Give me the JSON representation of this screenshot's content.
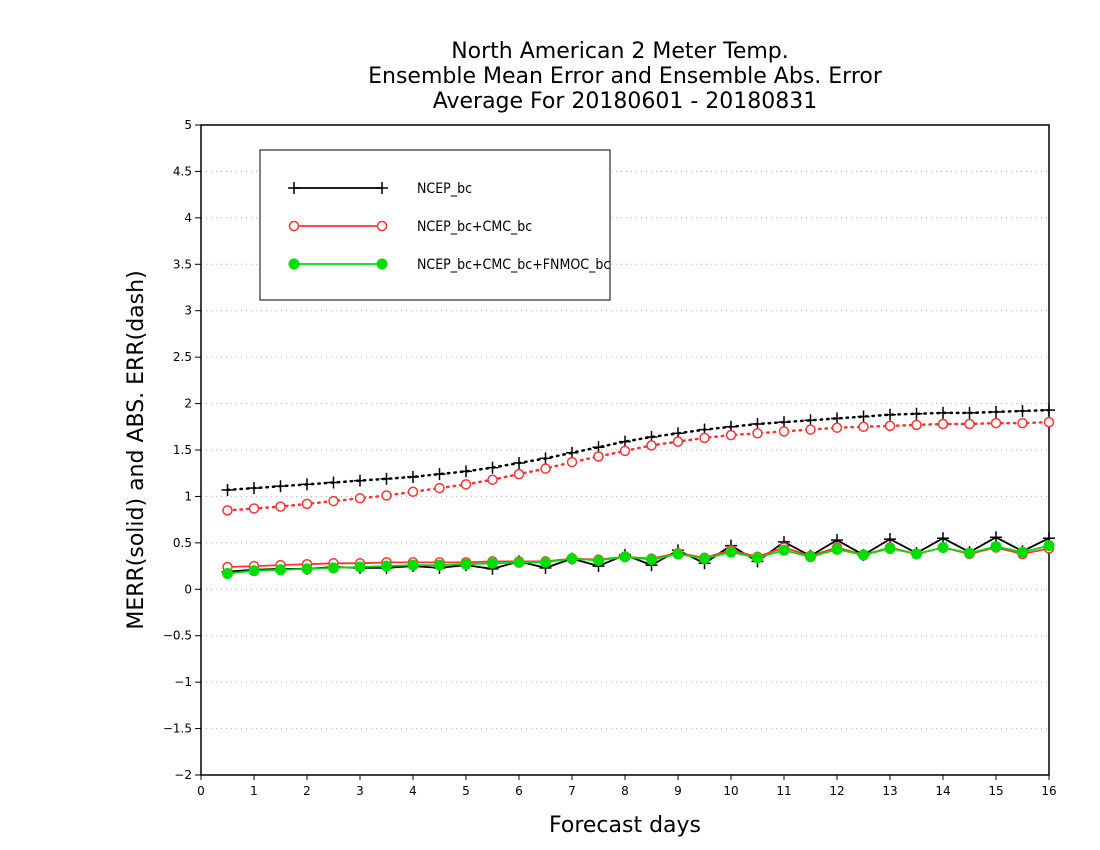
{
  "chart_data": {
    "type": "line",
    "title_lines": [
      "North American 2 Meter Temp.",
      "Ensemble Mean Error and Ensemble Abs. Error",
      "Average For 20180601 - 20180831"
    ],
    "xlabel": "Forecast days",
    "ylabel": "MERR(solid) and ABS. ERR(dash)",
    "xlim": [
      0,
      16
    ],
    "ylim": [
      -2,
      5
    ],
    "x_ticks": [
      0,
      1,
      2,
      3,
      4,
      5,
      6,
      7,
      8,
      9,
      10,
      11,
      12,
      13,
      14,
      15,
      16
    ],
    "y_ticks": [
      -2,
      -1.5,
      -1,
      -0.5,
      0,
      0.5,
      1,
      1.5,
      2,
      2.5,
      3,
      3.5,
      4,
      4.5,
      5
    ],
    "grid": true,
    "legend_position": "top-left",
    "x": [
      0.5,
      1,
      1.5,
      2,
      2.5,
      3,
      3.5,
      4,
      4.5,
      5,
      5.5,
      6,
      6.5,
      7,
      7.5,
      8,
      8.5,
      9,
      9.5,
      10,
      10.5,
      11,
      11.5,
      12,
      12.5,
      13,
      13.5,
      14,
      14.5,
      15,
      15.5,
      16
    ],
    "series": [
      {
        "name": "NCEP_bc",
        "color": "#000000",
        "marker": "plus",
        "merr": [
          0.19,
          0.21,
          0.22,
          0.22,
          0.24,
          0.23,
          0.23,
          0.25,
          0.23,
          0.26,
          0.22,
          0.3,
          0.23,
          0.33,
          0.25,
          0.37,
          0.26,
          0.42,
          0.28,
          0.47,
          0.3,
          0.51,
          0.36,
          0.53,
          0.37,
          0.54,
          0.39,
          0.55,
          0.4,
          0.56,
          0.41,
          0.55
        ],
        "abs_err": [
          1.07,
          1.09,
          1.11,
          1.13,
          1.15,
          1.17,
          1.19,
          1.21,
          1.24,
          1.27,
          1.31,
          1.36,
          1.41,
          1.47,
          1.53,
          1.59,
          1.64,
          1.68,
          1.72,
          1.75,
          1.78,
          1.8,
          1.82,
          1.84,
          1.86,
          1.88,
          1.89,
          1.9,
          1.9,
          1.91,
          1.92,
          1.93
        ]
      },
      {
        "name": "NCEP_bc+CMC_bc",
        "color": "#ff3333",
        "marker": "open-circle",
        "merr": [
          0.24,
          0.25,
          0.26,
          0.27,
          0.28,
          0.28,
          0.29,
          0.29,
          0.29,
          0.29,
          0.3,
          0.3,
          0.3,
          0.33,
          0.32,
          0.35,
          0.33,
          0.39,
          0.34,
          0.42,
          0.35,
          0.45,
          0.36,
          0.45,
          0.37,
          0.45,
          0.38,
          0.45,
          0.38,
          0.45,
          0.38,
          0.44
        ],
        "abs_err": [
          0.85,
          0.87,
          0.89,
          0.92,
          0.95,
          0.98,
          1.01,
          1.05,
          1.09,
          1.13,
          1.18,
          1.24,
          1.3,
          1.37,
          1.43,
          1.49,
          1.55,
          1.59,
          1.63,
          1.66,
          1.68,
          1.7,
          1.72,
          1.74,
          1.75,
          1.76,
          1.77,
          1.78,
          1.78,
          1.79,
          1.79,
          1.8
        ]
      },
      {
        "name": "NCEP_bc+CMC_bc+FNMOC_bc",
        "color": "#00dd00",
        "marker": "filled-circle",
        "merr": [
          0.17,
          0.2,
          0.21,
          0.22,
          0.23,
          0.24,
          0.25,
          0.26,
          0.26,
          0.27,
          0.28,
          0.29,
          0.29,
          0.33,
          0.31,
          0.35,
          0.32,
          0.38,
          0.33,
          0.4,
          0.34,
          0.42,
          0.35,
          0.43,
          0.37,
          0.44,
          0.38,
          0.45,
          0.39,
          0.46,
          0.4,
          0.47
        ]
      }
    ]
  }
}
